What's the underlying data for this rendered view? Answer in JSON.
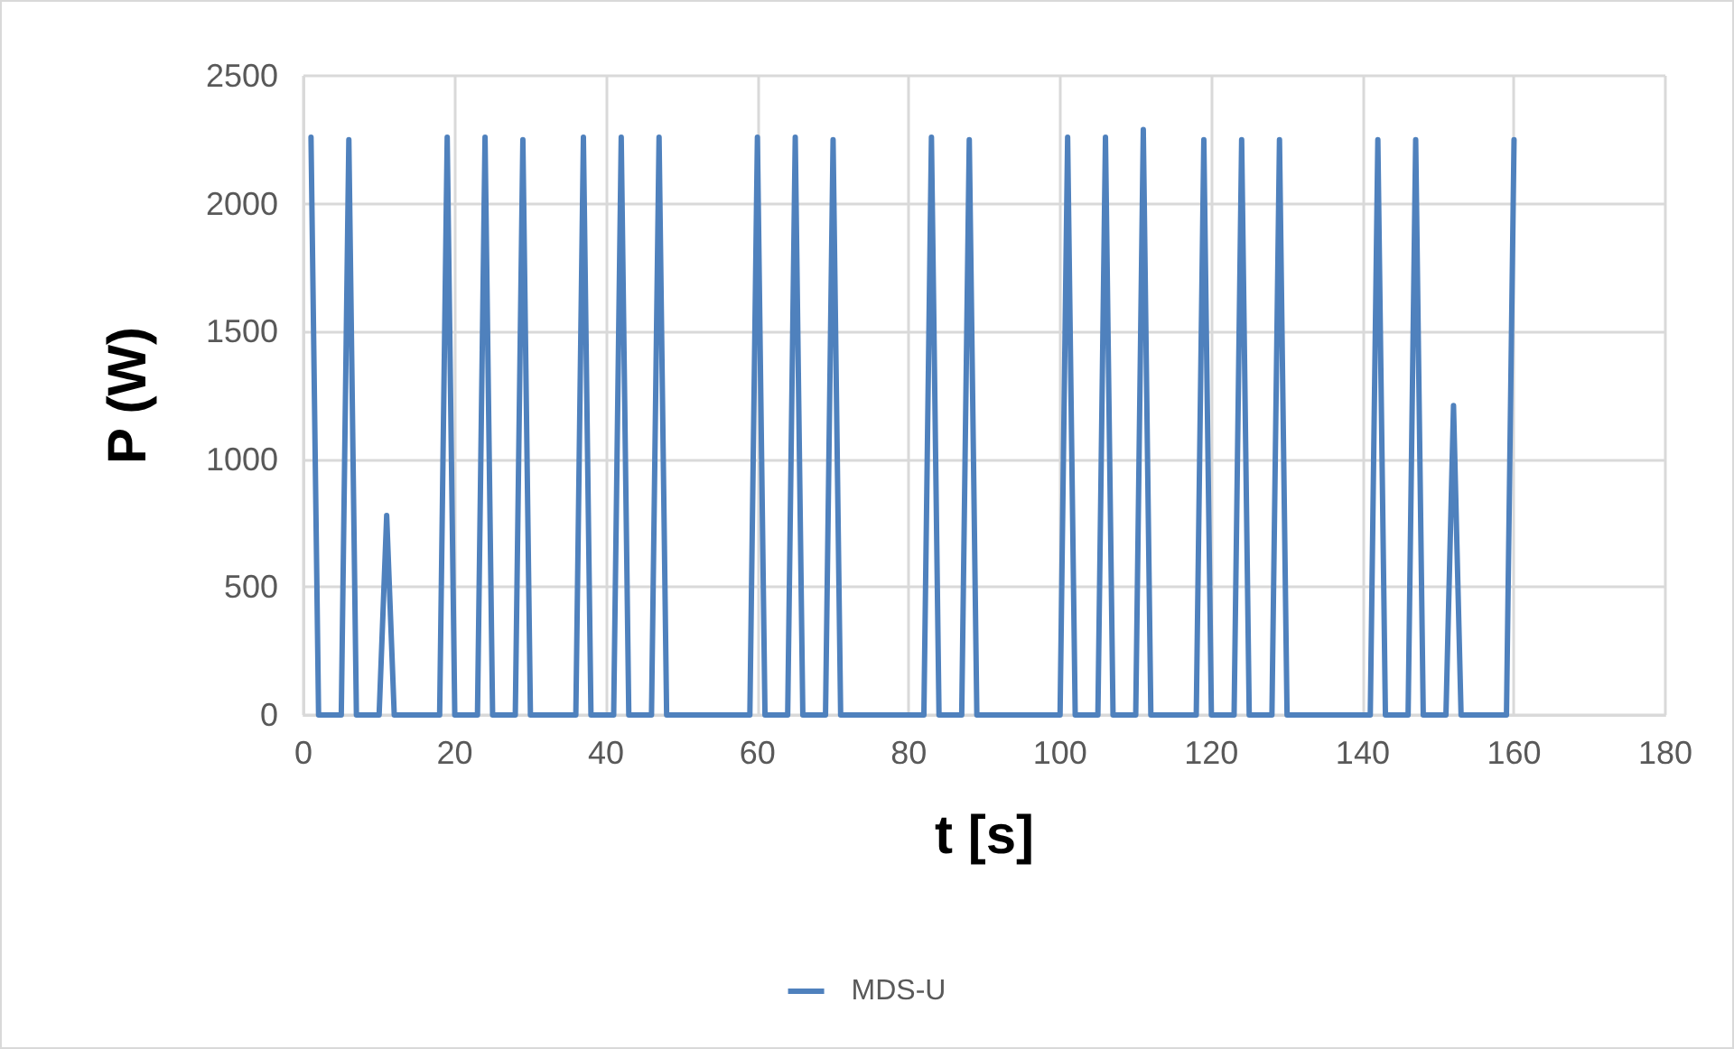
{
  "chart_data": {
    "type": "line",
    "xlabel": "t [s]",
    "ylabel": "P (W)",
    "xlim": [
      0,
      180
    ],
    "xticks": [
      0,
      20,
      40,
      60,
      80,
      100,
      120,
      140,
      160,
      180
    ],
    "ylim": [
      0,
      2500
    ],
    "yticks": [
      0,
      500,
      1000,
      1500,
      2000,
      2500
    ],
    "grid": true,
    "legend": "bottom",
    "marker": "none",
    "line_style": "solid",
    "series": [
      {
        "name": "MDS-U",
        "color": "#4f81bd",
        "x": [
          1,
          2,
          5,
          6,
          7,
          10,
          11,
          12,
          18,
          19,
          20,
          23,
          24,
          25,
          28,
          29,
          30,
          36,
          37,
          38,
          41,
          42,
          43,
          46,
          47,
          48,
          59,
          60,
          61,
          64,
          65,
          66,
          69,
          70,
          71,
          82,
          83,
          84,
          87,
          88,
          89,
          100,
          101,
          102,
          105,
          106,
          107,
          110,
          111,
          112,
          118,
          119,
          120,
          123,
          124,
          125,
          128,
          129,
          130,
          141,
          142,
          143,
          146,
          147,
          148,
          151,
          152,
          153,
          159,
          160
        ],
        "values": [
          2260,
          0,
          0,
          2250,
          0,
          0,
          780,
          0,
          0,
          2260,
          0,
          0,
          2260,
          0,
          0,
          2250,
          0,
          0,
          2260,
          0,
          0,
          2260,
          0,
          0,
          2260,
          0,
          0,
          2260,
          0,
          0,
          2260,
          0,
          0,
          2250,
          0,
          0,
          2260,
          0,
          0,
          2250,
          0,
          0,
          2260,
          0,
          0,
          2260,
          0,
          0,
          2290,
          0,
          0,
          2250,
          0,
          0,
          2250,
          0,
          0,
          2250,
          0,
          0,
          2250,
          0,
          0,
          2250,
          0,
          0,
          1210,
          0,
          0,
          2250
        ]
      }
    ]
  }
}
